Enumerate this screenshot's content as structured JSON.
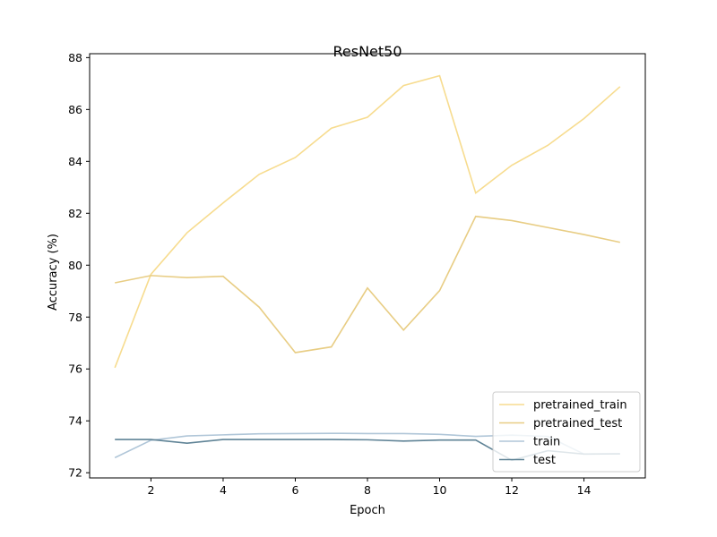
{
  "chart_data": {
    "type": "line",
    "title": "ResNet50",
    "xlabel": "Epoch",
    "ylabel": "Accuracy (%)",
    "xlim": [
      0.3,
      15.7
    ],
    "ylim": [
      71.8,
      88.15
    ],
    "x_ticks": [
      2,
      4,
      6,
      8,
      10,
      12,
      14
    ],
    "y_ticks": [
      72,
      74,
      76,
      78,
      80,
      82,
      84,
      86,
      88
    ],
    "grid": false,
    "legend_position": "lower-right",
    "x": [
      1,
      2,
      3,
      4,
      5,
      6,
      7,
      8,
      9,
      10,
      11,
      12,
      13,
      14,
      15
    ],
    "series": [
      {
        "name": "pretrained_train",
        "color": "#f7dc8f",
        "values": [
          76.05,
          79.65,
          81.25,
          82.4,
          83.5,
          84.15,
          85.28,
          85.7,
          86.92,
          87.3,
          82.78,
          83.85,
          84.62,
          85.65,
          86.88
        ]
      },
      {
        "name": "pretrained_test",
        "color": "#e8cd84",
        "values": [
          79.32,
          79.6,
          79.52,
          79.57,
          78.38,
          76.63,
          76.85,
          79.12,
          77.5,
          79.02,
          81.88,
          81.72,
          81.45,
          81.18,
          80.88
        ]
      },
      {
        "name": "train",
        "color": "#b0c6d8",
        "values": [
          72.58,
          73.25,
          73.42,
          73.46,
          73.5,
          73.51,
          73.52,
          73.51,
          73.51,
          73.48,
          73.4,
          73.45,
          73.4,
          72.72,
          72.73
        ]
      },
      {
        "name": "test",
        "color": "#5f8396",
        "values": [
          73.28,
          73.28,
          73.14,
          73.28,
          73.28,
          73.28,
          73.28,
          73.27,
          73.22,
          73.26,
          73.26,
          72.48,
          72.85,
          72.72,
          72.73
        ]
      }
    ]
  }
}
